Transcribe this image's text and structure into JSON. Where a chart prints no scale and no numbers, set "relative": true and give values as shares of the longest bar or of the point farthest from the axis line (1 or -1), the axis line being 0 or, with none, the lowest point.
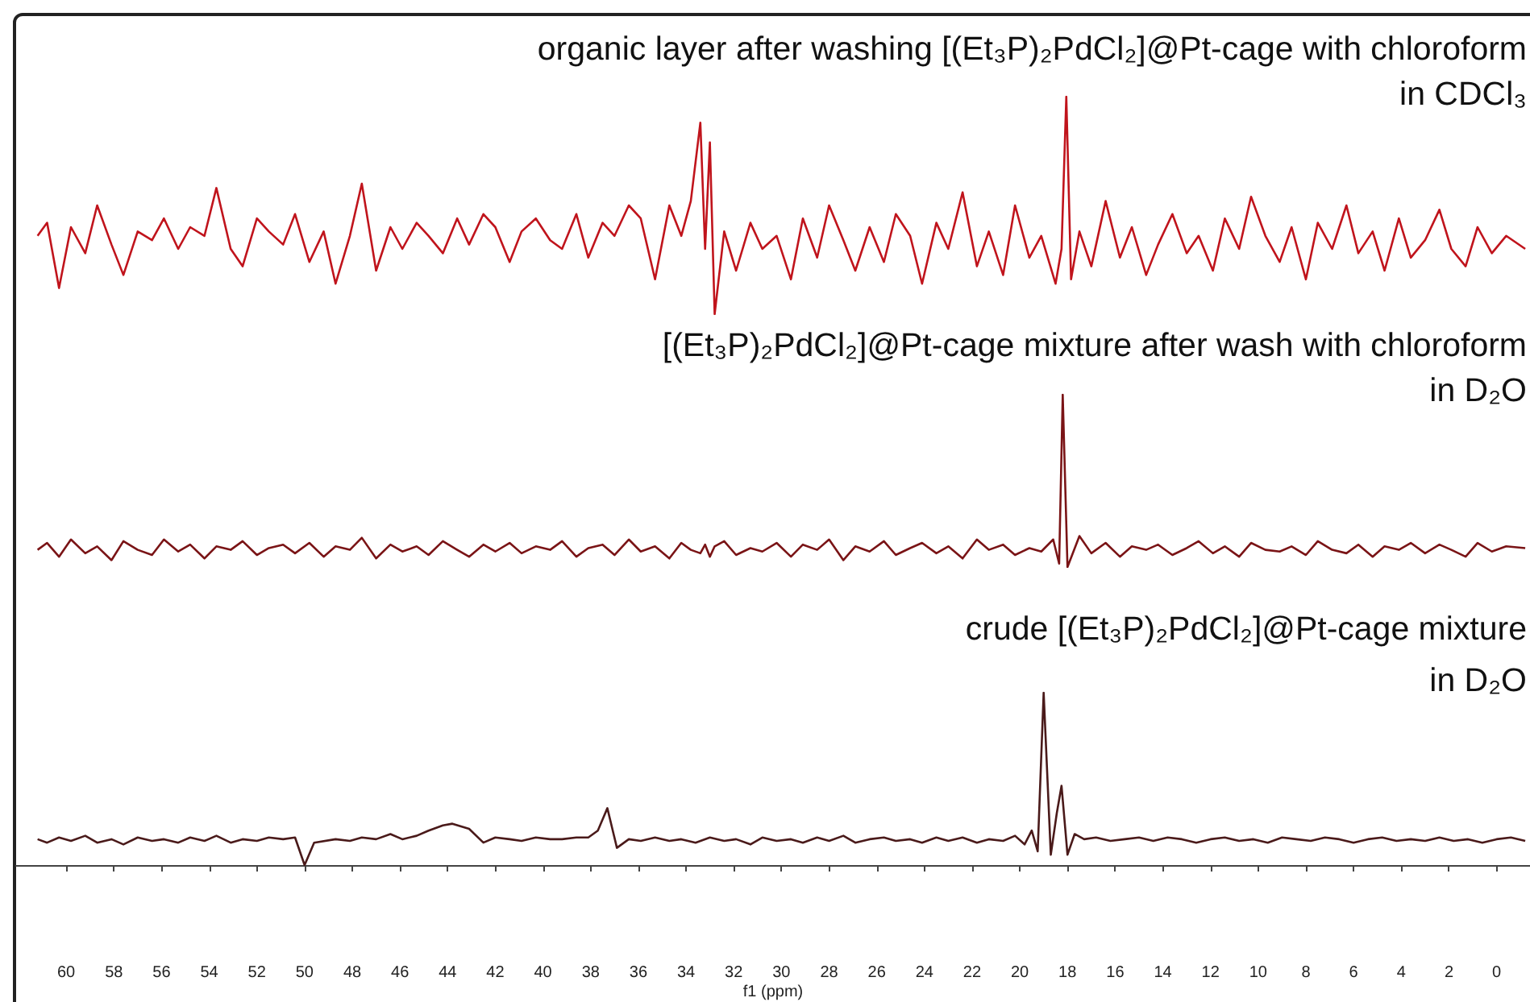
{
  "chart_data": [
    {
      "type": "line",
      "title": "organic layer after washing [(Et₃P)₂PdCl₂]@Pt-cage with chloroform",
      "subtitle": "in CDCl₃",
      "relative": true,
      "xlim": [
        62.1,
        -1.4
      ],
      "tick_labels": false,
      "marker": "none",
      "color": "#c0141c",
      "x": [
        61.2,
        60.8,
        60.3,
        59.8,
        59.2,
        58.7,
        58.1,
        57.6,
        57,
        56.4,
        55.9,
        55.3,
        54.8,
        54.2,
        53.7,
        53.1,
        52.6,
        52,
        51.5,
        50.9,
        50.4,
        49.8,
        49.2,
        48.7,
        48.1,
        47.6,
        47,
        46.4,
        45.9,
        45.3,
        44.8,
        44.2,
        43.6,
        43.1,
        42.5,
        42,
        41.4,
        40.9,
        40.3,
        39.7,
        39.2,
        38.6,
        38.1,
        37.5,
        37,
        36.4,
        35.9,
        35.3,
        34.7,
        34.2,
        33.8,
        33.4,
        33.2,
        33,
        32.8,
        32.4,
        31.9,
        31.3,
        30.8,
        30.2,
        29.6,
        29.1,
        28.5,
        28,
        27.4,
        26.9,
        26.3,
        25.7,
        25.2,
        24.6,
        24.1,
        23.5,
        23,
        22.4,
        21.8,
        21.3,
        20.7,
        20.2,
        19.6,
        19.1,
        18.5,
        18.25,
        18.05,
        17.85,
        17.5,
        17,
        16.4,
        15.8,
        15.3,
        14.7,
        14.2,
        13.6,
        13,
        12.5,
        11.9,
        11.4,
        10.8,
        10.3,
        9.7,
        9.1,
        8.6,
        8,
        7.5,
        6.9,
        6.3,
        5.8,
        5.2,
        4.7,
        4.1,
        3.6,
        3,
        2.4,
        1.9,
        1.3,
        0.8,
        0.2,
        -0.4,
        -1.2
      ],
      "values": [
        0.36,
        0.42,
        0.12,
        0.4,
        0.28,
        0.5,
        0.32,
        0.18,
        0.38,
        0.34,
        0.44,
        0.3,
        0.4,
        0.36,
        0.58,
        0.3,
        0.22,
        0.44,
        0.38,
        0.32,
        0.46,
        0.24,
        0.38,
        0.14,
        0.36,
        0.6,
        0.2,
        0.4,
        0.3,
        0.42,
        0.36,
        0.28,
        0.44,
        0.32,
        0.46,
        0.4,
        0.24,
        0.38,
        0.44,
        0.34,
        0.3,
        0.46,
        0.26,
        0.42,
        0.36,
        0.5,
        0.44,
        0.16,
        0.5,
        0.36,
        0.52,
        0.88,
        0.3,
        0.79,
        0,
        0.38,
        0.2,
        0.42,
        0.3,
        0.36,
        0.16,
        0.44,
        0.26,
        0.5,
        0.34,
        0.2,
        0.4,
        0.24,
        0.46,
        0.36,
        0.14,
        0.42,
        0.3,
        0.56,
        0.22,
        0.38,
        0.18,
        0.5,
        0.26,
        0.36,
        0.14,
        0.3,
        1,
        0.16,
        0.38,
        0.22,
        0.52,
        0.26,
        0.4,
        0.18,
        0.32,
        0.46,
        0.28,
        0.36,
        0.2,
        0.44,
        0.3,
        0.54,
        0.36,
        0.24,
        0.4,
        0.16,
        0.42,
        0.3,
        0.5,
        0.28,
        0.38,
        0.2,
        0.44,
        0.26,
        0.34,
        0.48,
        0.3,
        0.22,
        0.4,
        0.28,
        0.36,
        0.3
      ]
    },
    {
      "type": "line",
      "title": "[(Et₃P)₂PdCl₂]@Pt-cage mixture after wash with chloroform",
      "subtitle": "in D₂O",
      "relative": true,
      "xlim": [
        62.1,
        -1.4
      ],
      "tick_labels": false,
      "marker": "none",
      "color": "#7a1416",
      "x": [
        61.2,
        60.8,
        60.3,
        59.8,
        59.2,
        58.7,
        58.1,
        57.6,
        57,
        56.4,
        55.9,
        55.3,
        54.8,
        54.2,
        53.7,
        53.1,
        52.6,
        52,
        51.5,
        50.9,
        50.4,
        49.8,
        49.2,
        48.7,
        48.1,
        47.6,
        47,
        46.4,
        45.9,
        45.3,
        44.8,
        44.2,
        43.6,
        43.1,
        42.5,
        42,
        41.4,
        40.9,
        40.3,
        39.7,
        39.2,
        38.6,
        38.1,
        37.5,
        37,
        36.4,
        35.9,
        35.3,
        34.7,
        34.2,
        33.8,
        33.4,
        33.2,
        33,
        32.8,
        32.4,
        31.9,
        31.3,
        30.8,
        30.2,
        29.6,
        29.1,
        28.5,
        28,
        27.4,
        26.9,
        26.3,
        25.7,
        25.2,
        24.6,
        24.1,
        23.5,
        23,
        22.4,
        21.8,
        21.3,
        20.7,
        20.2,
        19.6,
        19.1,
        18.6,
        18.35,
        18.2,
        18,
        17.5,
        17,
        16.4,
        15.8,
        15.3,
        14.7,
        14.2,
        13.6,
        13,
        12.5,
        11.9,
        11.4,
        10.8,
        10.3,
        9.7,
        9.1,
        8.6,
        8,
        7.5,
        6.9,
        6.3,
        5.8,
        5.2,
        4.7,
        4.1,
        3.6,
        3,
        2.4,
        1.9,
        1.3,
        0.8,
        0.2,
        -0.4,
        -1.2
      ],
      "values": [
        0.1,
        0.14,
        0.06,
        0.16,
        0.08,
        0.12,
        0.04,
        0.15,
        0.1,
        0.07,
        0.16,
        0.09,
        0.13,
        0.05,
        0.12,
        0.1,
        0.15,
        0.07,
        0.11,
        0.13,
        0.08,
        0.14,
        0.06,
        0.12,
        0.1,
        0.17,
        0.05,
        0.13,
        0.09,
        0.12,
        0.07,
        0.15,
        0.1,
        0.06,
        0.13,
        0.09,
        0.14,
        0.08,
        0.12,
        0.1,
        0.15,
        0.06,
        0.11,
        0.13,
        0.07,
        0.16,
        0.09,
        0.12,
        0.05,
        0.14,
        0.1,
        0.08,
        0.13,
        0.06,
        0.12,
        0.15,
        0.07,
        0.11,
        0.09,
        0.14,
        0.06,
        0.13,
        0.1,
        0.16,
        0.04,
        0.12,
        0.09,
        0.15,
        0.07,
        0.11,
        0.14,
        0.08,
        0.12,
        0.05,
        0.16,
        0.1,
        0.13,
        0.07,
        0.11,
        0.09,
        0.16,
        0.02,
        1,
        0,
        0.18,
        0.08,
        0.14,
        0.06,
        0.12,
        0.1,
        0.13,
        0.07,
        0.11,
        0.15,
        0.08,
        0.12,
        0.06,
        0.14,
        0.1,
        0.09,
        0.12,
        0.07,
        0.15,
        0.1,
        0.08,
        0.13,
        0.06,
        0.12,
        0.1,
        0.14,
        0.08,
        0.13,
        0.1,
        0.06,
        0.14,
        0.09,
        0.12,
        0.11
      ]
    },
    {
      "type": "line",
      "title": "crude [(Et₃P)₂PdCl₂]@Pt-cage mixture",
      "subtitle": "in D₂O",
      "xlabel": "f1 (ppm)",
      "relative": true,
      "xlim": [
        62.1,
        -1.4
      ],
      "xticks": [
        60,
        58,
        56,
        54,
        52,
        50,
        48,
        46,
        44,
        42,
        40,
        38,
        36,
        34,
        32,
        30,
        28,
        26,
        24,
        22,
        20,
        18,
        16,
        14,
        12,
        10,
        8,
        6,
        4,
        2,
        0
      ],
      "marker": "none",
      "color": "#4a1a1a",
      "x": [
        61.2,
        60.8,
        60.3,
        59.8,
        59.2,
        58.7,
        58.1,
        57.6,
        57,
        56.4,
        55.9,
        55.3,
        54.8,
        54.2,
        53.7,
        53.1,
        52.6,
        52,
        51.5,
        50.9,
        50.4,
        50,
        49.6,
        48.7,
        48.1,
        47.6,
        47,
        46.4,
        45.9,
        45.3,
        44.8,
        44.2,
        43.8,
        43.1,
        42.5,
        42,
        41.4,
        40.9,
        40.3,
        39.7,
        39.2,
        38.6,
        38.1,
        37.7,
        37.3,
        36.9,
        36.4,
        35.9,
        35.3,
        34.7,
        34.2,
        33.6,
        33,
        32.4,
        31.9,
        31.3,
        30.8,
        30.2,
        29.6,
        29.1,
        28.5,
        28,
        27.4,
        26.9,
        26.3,
        25.7,
        25.2,
        24.6,
        24.1,
        23.5,
        23,
        22.4,
        21.8,
        21.3,
        20.7,
        20.2,
        19.8,
        19.5,
        19.25,
        19,
        18.7,
        18.45,
        18.25,
        18,
        17.7,
        17.3,
        16.8,
        16.2,
        15.6,
        15,
        14.4,
        13.8,
        13.2,
        12.6,
        12,
        11.4,
        10.8,
        10.2,
        9.6,
        9,
        8.4,
        7.8,
        7.2,
        6.6,
        6,
        5.4,
        4.8,
        4.2,
        3.6,
        3,
        2.4,
        1.8,
        1.2,
        0.6,
        0,
        -0.6,
        -1.2
      ],
      "values": [
        0.15,
        0.13,
        0.16,
        0.14,
        0.17,
        0.13,
        0.15,
        0.12,
        0.16,
        0.14,
        0.15,
        0.13,
        0.16,
        0.14,
        0.17,
        0.13,
        0.15,
        0.14,
        0.16,
        0.15,
        0.16,
        0,
        0.13,
        0.15,
        0.14,
        0.16,
        0.15,
        0.18,
        0.15,
        0.17,
        0.2,
        0.23,
        0.24,
        0.21,
        0.13,
        0.16,
        0.15,
        0.14,
        0.16,
        0.15,
        0.15,
        0.16,
        0.16,
        0.2,
        0.33,
        0.1,
        0.15,
        0.14,
        0.16,
        0.14,
        0.15,
        0.13,
        0.16,
        0.14,
        0.15,
        0.12,
        0.16,
        0.14,
        0.15,
        0.13,
        0.16,
        0.14,
        0.17,
        0.13,
        0.15,
        0.16,
        0.14,
        0.15,
        0.13,
        0.16,
        0.14,
        0.16,
        0.13,
        0.15,
        0.14,
        0.17,
        0.12,
        0.2,
        0.08,
        1,
        0.06,
        0.3,
        0.46,
        0.06,
        0.18,
        0.15,
        0.16,
        0.14,
        0.15,
        0.16,
        0.14,
        0.16,
        0.15,
        0.13,
        0.15,
        0.16,
        0.14,
        0.15,
        0.13,
        0.16,
        0.15,
        0.14,
        0.16,
        0.15,
        0.13,
        0.15,
        0.16,
        0.14,
        0.15,
        0.14,
        0.16,
        0.14,
        0.15,
        0.13,
        0.15,
        0.16,
        0.14
      ]
    }
  ]
}
